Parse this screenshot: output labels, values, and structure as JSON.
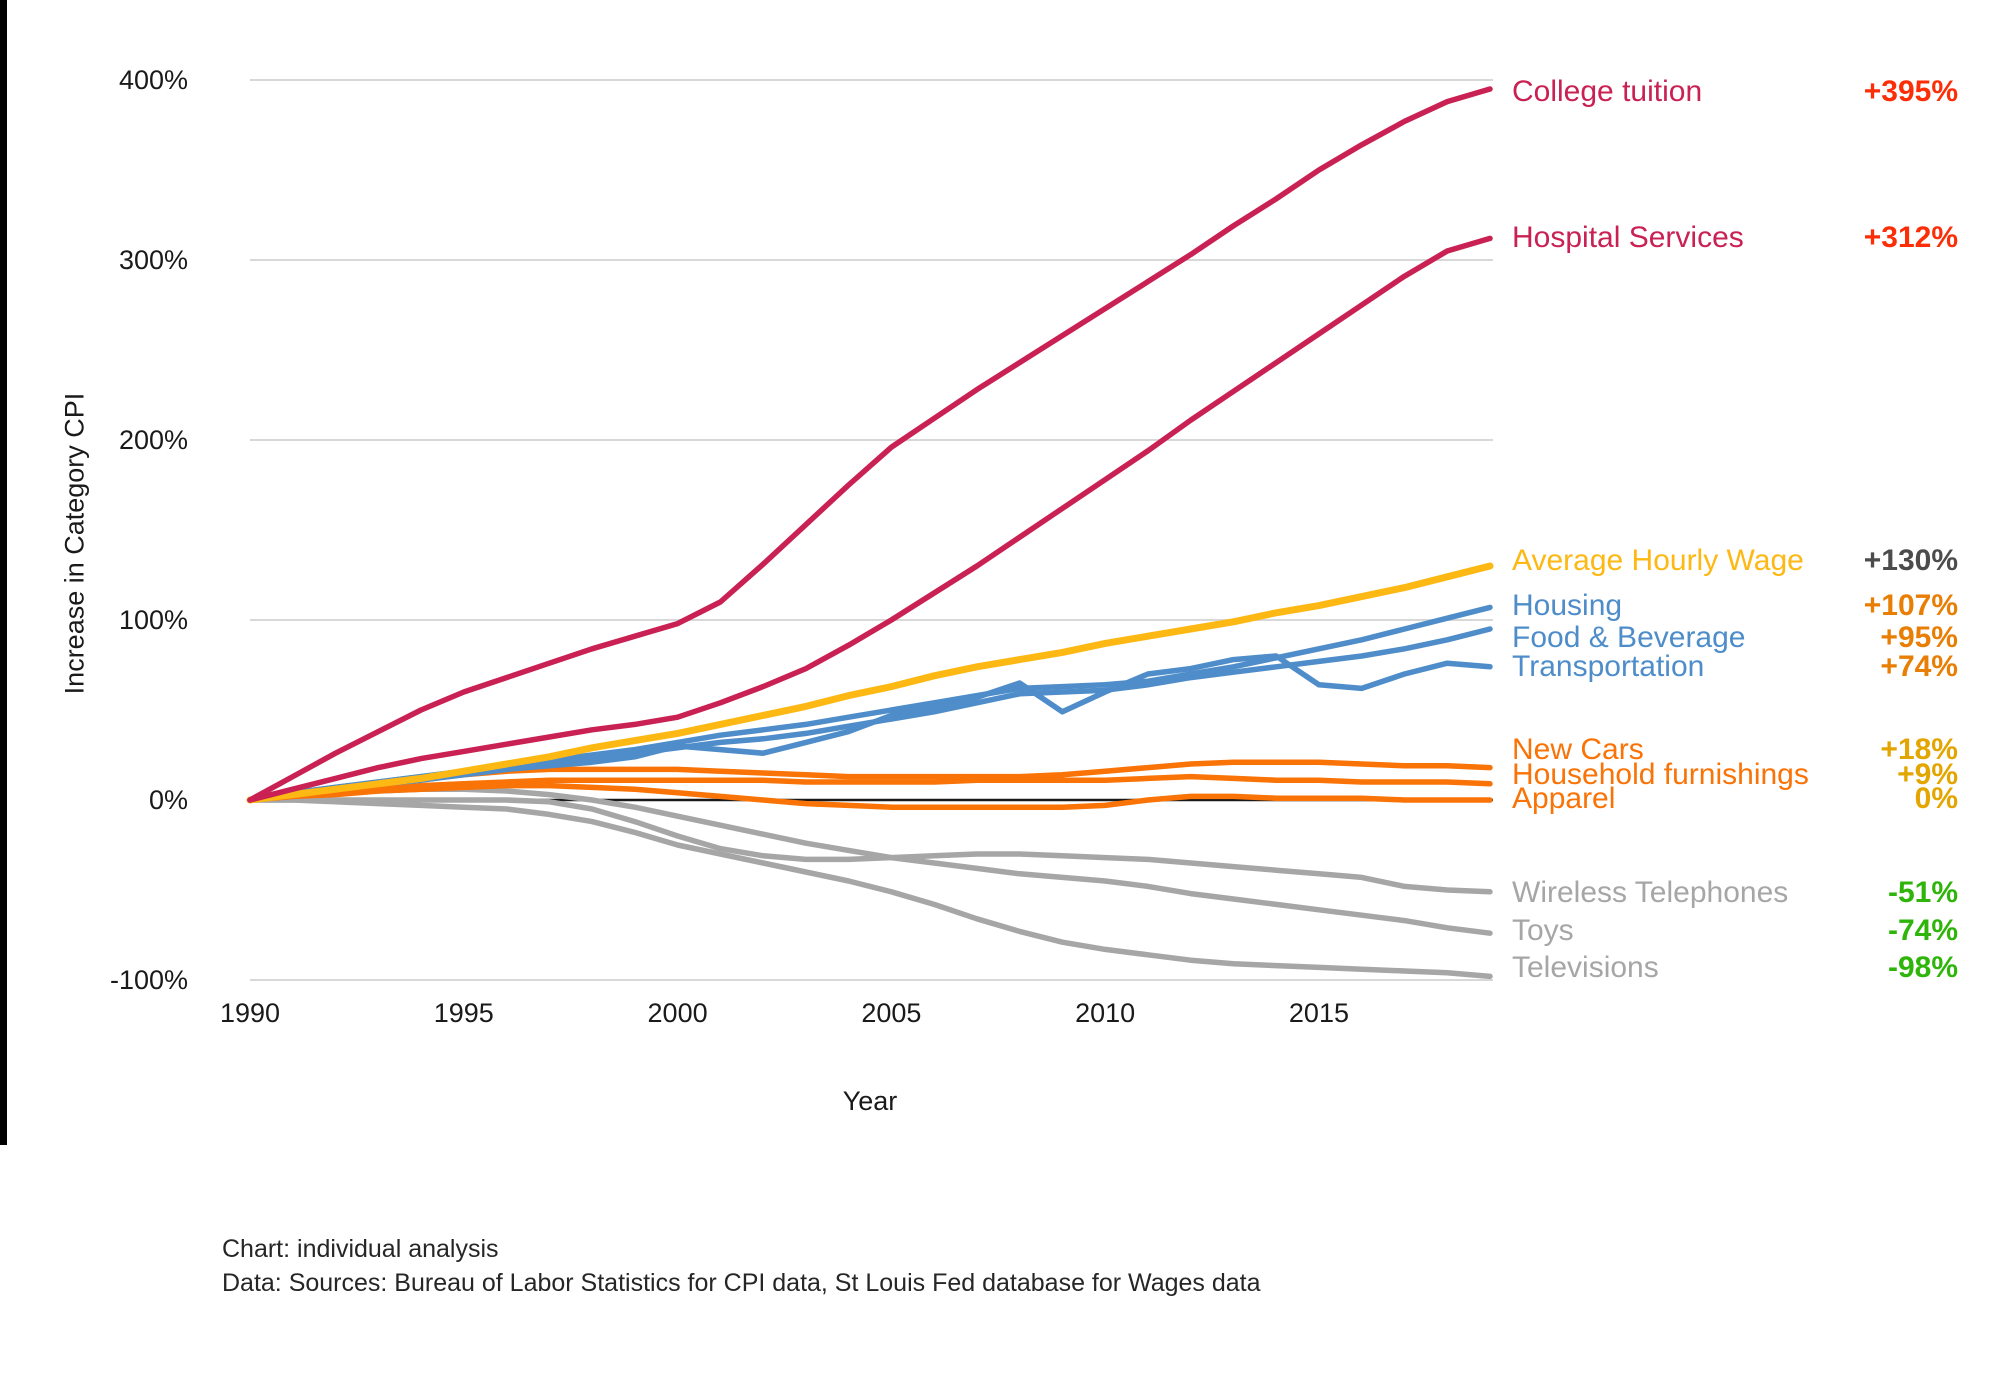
{
  "chart_data": {
    "type": "line",
    "xlabel": "Year",
    "ylabel": "Increase in Category CPI",
    "xlim": [
      1990,
      2019
    ],
    "ylim": [
      -100,
      400
    ],
    "grid": "horizontal",
    "legend_position": "right",
    "x_ticks": [
      1990,
      1995,
      2000,
      2005,
      2010,
      2015
    ],
    "y_ticks": [
      {
        "value": 400,
        "label": "400%"
      },
      {
        "value": 300,
        "label": "300%"
      },
      {
        "value": 200,
        "label": "200%"
      },
      {
        "value": 100,
        "label": "100%"
      },
      {
        "value": 0,
        "label": "0%"
      },
      {
        "value": -100,
        "label": "-100%"
      }
    ],
    "years": [
      1990,
      1991,
      1992,
      1993,
      1994,
      1995,
      1996,
      1997,
      1998,
      1999,
      2000,
      2001,
      2002,
      2003,
      2004,
      2005,
      2006,
      2007,
      2008,
      2009,
      2010,
      2011,
      2012,
      2013,
      2014,
      2015,
      2016,
      2017,
      2018,
      2019
    ],
    "series": [
      {
        "id": "college_tuition",
        "label": "College tuition",
        "value_label": "+395%",
        "line_color": "#C92153",
        "label_color": "#C92153",
        "value_color": "#FB2E08",
        "line_width": 5.5,
        "values": [
          0,
          13,
          26,
          38,
          50,
          60,
          68,
          76,
          84,
          91,
          98,
          110,
          131,
          153,
          175,
          196,
          212,
          228,
          243,
          258,
          273,
          288,
          303,
          319,
          334,
          350,
          364,
          377,
          388,
          395
        ]
      },
      {
        "id": "hospital_services",
        "label": "Hospital Services",
        "value_label": "+312%",
        "line_color": "#C92153",
        "label_color": "#C92153",
        "value_color": "#FB2E08",
        "line_width": 5.5,
        "values": [
          0,
          6,
          12,
          18,
          23,
          27,
          31,
          35,
          39,
          42,
          46,
          54,
          63,
          73,
          86,
          100,
          115,
          130,
          146,
          162,
          178,
          194,
          211,
          227,
          243,
          259,
          275,
          291,
          305,
          312
        ]
      },
      {
        "id": "average_hourly_wage",
        "label": "Average Hourly Wage",
        "value_label": "+130%",
        "line_color": "#FDB813",
        "label_color": "#FDB813",
        "value_color": "#4C4C4C",
        "line_width": 7,
        "values": [
          0,
          3,
          6,
          9,
          12,
          16,
          20,
          24,
          29,
          33,
          37,
          42,
          47,
          52,
          58,
          63,
          69,
          74,
          78,
          82,
          87,
          91,
          95,
          99,
          104,
          108,
          113,
          118,
          124,
          130
        ]
      },
      {
        "id": "housing",
        "label": "Housing",
        "value_label": "+107%",
        "line_color": "#4E8DC9",
        "label_color": "#4E8DC9",
        "value_color": "#E87E04",
        "line_width": 5.5,
        "values": [
          0,
          4,
          7,
          10,
          13,
          16,
          19,
          22,
          25,
          28,
          32,
          36,
          39,
          42,
          46,
          50,
          54,
          58,
          62,
          63,
          64,
          66,
          70,
          74,
          79,
          84,
          89,
          95,
          101,
          107
        ]
      },
      {
        "id": "food_beverage",
        "label": "Food & Beverage",
        "value_label": "+95%",
        "line_color": "#4E8DC9",
        "label_color": "#4E8DC9",
        "value_color": "#E87E04",
        "line_width": 5.5,
        "values": [
          0,
          4,
          7,
          10,
          13,
          16,
          18,
          21,
          23,
          26,
          29,
          32,
          34,
          37,
          41,
          45,
          49,
          54,
          59,
          60,
          61,
          64,
          68,
          71,
          74,
          77,
          80,
          84,
          89,
          95
        ]
      },
      {
        "id": "transportation",
        "label": "Transportation",
        "value_label": "+74%",
        "line_color": "#4E8DC9",
        "label_color": "#4E8DC9",
        "value_color": "#E87E04",
        "line_width": 5.5,
        "values": [
          0,
          3,
          6,
          9,
          11,
          14,
          17,
          19,
          21,
          24,
          30,
          28,
          26,
          32,
          38,
          47,
          52,
          57,
          65,
          49,
          60,
          70,
          73,
          78,
          80,
          64,
          62,
          70,
          76,
          74
        ]
      },
      {
        "id": "new_cars",
        "label": "New Cars",
        "value_label": "+18%",
        "line_color": "#F97306",
        "label_color": "#F97306",
        "value_color": "#E3A500",
        "line_width": 5.5,
        "values": [
          0,
          3,
          6,
          9,
          12,
          14,
          16,
          17,
          17,
          17,
          17,
          16,
          15,
          14,
          13,
          13,
          13,
          13,
          13,
          14,
          16,
          18,
          20,
          21,
          21,
          21,
          20,
          19,
          19,
          18
        ]
      },
      {
        "id": "household_furnishings",
        "label": "Household furnishings",
        "value_label": "+9%",
        "line_color": "#F97306",
        "label_color": "#F97306",
        "value_color": "#E3A500",
        "line_width": 5.5,
        "values": [
          0,
          2,
          4,
          6,
          8,
          9,
          10,
          11,
          11,
          11,
          11,
          11,
          11,
          10,
          10,
          10,
          10,
          11,
          11,
          11,
          11,
          12,
          13,
          12,
          11,
          11,
          10,
          10,
          10,
          9
        ]
      },
      {
        "id": "apparel",
        "label": "Apparel",
        "value_label": "0%",
        "line_color": "#F97306",
        "label_color": "#F97306",
        "value_color": "#E3A500",
        "line_width": 5.5,
        "values": [
          0,
          2,
          3,
          5,
          6,
          7,
          8,
          8,
          7,
          6,
          4,
          2,
          0,
          -2,
          -3,
          -4,
          -4,
          -4,
          -4,
          -4,
          -3,
          0,
          2,
          2,
          1,
          1,
          1,
          0,
          0,
          0
        ]
      },
      {
        "id": "wireless_telephones",
        "label": "Wireless Telephones",
        "value_label": "-51%",
        "line_color": "#A6A6A6",
        "label_color": "#A6A6A6",
        "value_color": "#2FB50A",
        "line_width": 5.5,
        "values": [
          0,
          0,
          0,
          0,
          0,
          0,
          0,
          -1,
          -5,
          -12,
          -20,
          -27,
          -31,
          -33,
          -33,
          -32,
          -31,
          -30,
          -30,
          -31,
          -32,
          -33,
          -35,
          -37,
          -39,
          -41,
          -43,
          -48,
          -50,
          -51
        ]
      },
      {
        "id": "toys",
        "label": "Toys",
        "value_label": "-74%",
        "line_color": "#A6A6A6",
        "label_color": "#A6A6A6",
        "value_color": "#2FB50A",
        "line_width": 5.5,
        "values": [
          0,
          2,
          4,
          5,
          6,
          6,
          5,
          3,
          0,
          -4,
          -9,
          -14,
          -19,
          -24,
          -28,
          -32,
          -35,
          -38,
          -41,
          -43,
          -45,
          -48,
          -52,
          -55,
          -58,
          -61,
          -64,
          -67,
          -71,
          -74
        ]
      },
      {
        "id": "televisions",
        "label": "Televisions",
        "value_label": "-98%",
        "line_color": "#A6A6A6",
        "label_color": "#A6A6A6",
        "value_color": "#2FB50A",
        "line_width": 5.5,
        "values": [
          0,
          0,
          -1,
          -2,
          -3,
          -4,
          -5,
          -8,
          -12,
          -18,
          -25,
          -30,
          -35,
          -40,
          -45,
          -51,
          -58,
          -66,
          -73,
          -79,
          -83,
          -86,
          -89,
          -91,
          -92,
          -93,
          -94,
          -95,
          -96,
          -98
        ]
      }
    ],
    "gridline_color": "#D8D8D8",
    "zero_line_color": "#1a1a1a"
  },
  "footer": {
    "line1": "Chart: individual analysis",
    "line2": "Data: Sources: Bureau of Labor Statistics for CPI data, St Louis Fed database for Wages data"
  }
}
